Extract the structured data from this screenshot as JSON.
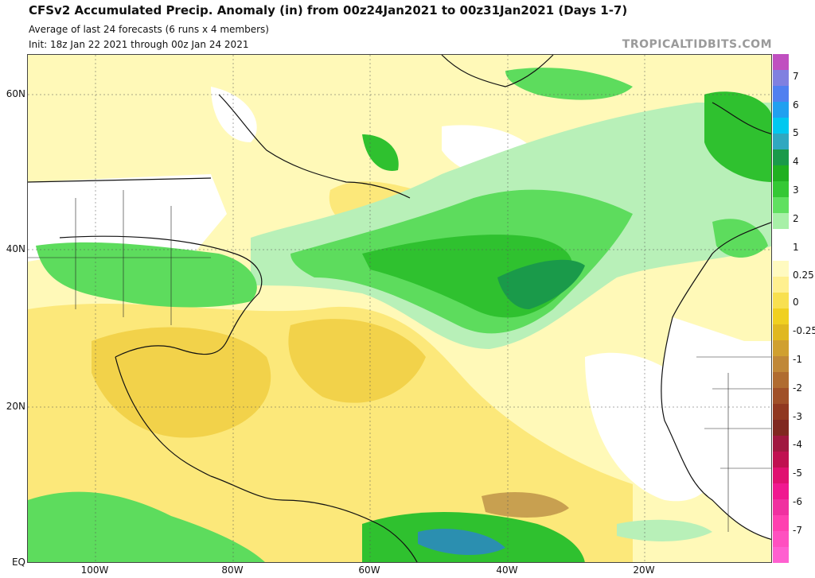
{
  "header": {
    "title": "CFSv2 Accumulated Precip. Anomaly (in) from 00z24Jan2021 to 00z31Jan2021 (Days 1-7)",
    "subtitle": "Average of last 24 forecasts (6 runs x 4 members)",
    "init": "Init: 18z Jan 22 2021 through 00z Jan 24 2021",
    "brand": "TROPICALTIDBITS.COM"
  },
  "map": {
    "lat_labels": [
      "60N",
      "40N",
      "20N",
      "EQ"
    ],
    "lon_labels": [
      "100W",
      "80W",
      "60W",
      "40W",
      "20W"
    ],
    "colors": {
      "ocean_neutral": "#ffffff",
      "dry_light": "#fff9b8",
      "dry_mid": "#fce87a",
      "dry_strong": "#f2d24a",
      "dry_brown": "#c8a050",
      "wet_light": "#b8f0b8",
      "wet_mid": "#5ddc5d",
      "wet_strong": "#2fc12f",
      "wet_dark": "#1a9a4a",
      "wet_teal": "#2b8fb0"
    }
  },
  "colorbar": {
    "labels": [
      "7",
      "6",
      "5",
      "4",
      "3",
      "2",
      "1",
      "0.25",
      "0",
      "-0.25",
      "-1",
      "-2",
      "-3",
      "-4",
      "-5",
      "-6",
      "-7"
    ],
    "colors": [
      "#c050c0",
      "#8080e0",
      "#5080f0",
      "#20a0f0",
      "#00c8f0",
      "#30a8c0",
      "#1a9a4a",
      "#20b020",
      "#34c834",
      "#60e060",
      "#a8f0a8",
      "#ffffff",
      "#ffffff",
      "#fffac0",
      "#fff090",
      "#f8e050",
      "#f0d020",
      "#e0b820",
      "#d0a030",
      "#c08838",
      "#b06c30",
      "#a05028",
      "#903820",
      "#802820",
      "#a01840",
      "#c01050",
      "#e01070",
      "#f01890",
      "#f030a0",
      "#ff40b0",
      "#ff50c0",
      "#ff60d0"
    ]
  }
}
